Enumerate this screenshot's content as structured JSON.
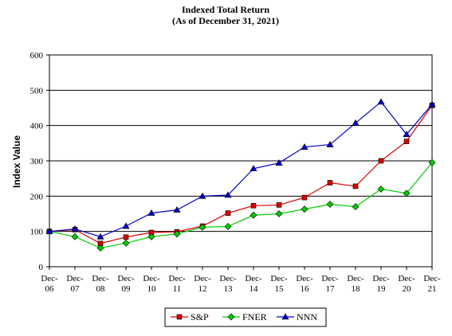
{
  "chart_data": {
    "type": "line",
    "title": "Indexed Total Return",
    "subtitle": "(As of December 31, 2021)",
    "xlabel": "",
    "ylabel": "Index Value",
    "ylim": [
      0,
      600
    ],
    "yticks": [
      0,
      100,
      200,
      300,
      400,
      500,
      600
    ],
    "grid": true,
    "legend_position": "bottom",
    "categories": [
      [
        "Dec-",
        "06"
      ],
      [
        "Dec-",
        "07"
      ],
      [
        "Dec-",
        "08"
      ],
      [
        "Dec-",
        "09"
      ],
      [
        "Dec-",
        "10"
      ],
      [
        "Dec-",
        "11"
      ],
      [
        "Dec-",
        "12"
      ],
      [
        "Dec-",
        "13"
      ],
      [
        "Dec-",
        "14"
      ],
      [
        "Dec-",
        "15"
      ],
      [
        "Dec-",
        "16"
      ],
      [
        "Dec-",
        "17"
      ],
      [
        "Dec-",
        "18"
      ],
      [
        "Dec-",
        "19"
      ],
      [
        "Dec-",
        "20"
      ],
      [
        "Dec-",
        "21"
      ]
    ],
    "series": [
      {
        "name": "S&P",
        "color": "#dd0000",
        "marker": "square",
        "values": [
          100,
          105,
          66,
          84,
          97,
          99,
          115,
          152,
          173,
          175,
          196,
          238,
          228,
          300,
          355,
          457
        ]
      },
      {
        "name": "FNER",
        "color": "#00cc00",
        "marker": "diamond",
        "values": [
          100,
          85,
          53,
          67,
          85,
          93,
          112,
          114,
          146,
          150,
          163,
          177,
          170,
          220,
          208,
          295
        ]
      },
      {
        "name": "NNN",
        "color": "#0000cc",
        "marker": "triangle",
        "values": [
          100,
          107,
          85,
          115,
          152,
          161,
          200,
          203,
          278,
          294,
          339,
          346,
          407,
          467,
          375,
          460
        ]
      }
    ]
  }
}
